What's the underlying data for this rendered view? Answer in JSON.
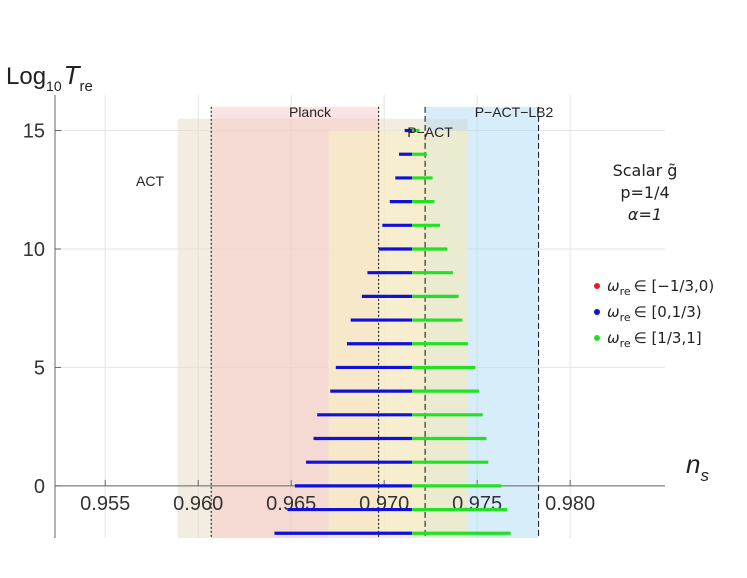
{
  "chart_data": {
    "type": "line",
    "x_axis": {
      "label_main": "n",
      "label_sub": "s",
      "range": [
        0.9523,
        0.9851
      ],
      "ticks": [
        0.955,
        0.96,
        0.965,
        0.97,
        0.975,
        0.98
      ],
      "tick_labels": [
        "0.955",
        "0.960",
        "0.965",
        "0.970",
        "0.975",
        "0.980"
      ]
    },
    "y_axis": {
      "label_prefix": "Log",
      "label_base": "10",
      "label_var": "T",
      "label_sub": "re",
      "range": [
        -2.2,
        16.5
      ],
      "ticks": [
        0,
        5,
        10,
        15
      ],
      "tick_labels": [
        "0",
        "5",
        "10",
        "15"
      ]
    },
    "regions": [
      {
        "name": "ACT",
        "label": "ACT",
        "x": [
          0.9589,
          0.9745
        ],
        "y": [
          -2.2,
          15.5
        ],
        "color": "#e8ddc8",
        "opacity": 0.55
      },
      {
        "name": "Planck",
        "label": "Planck",
        "x": [
          0.9607,
          0.9697
        ],
        "y": [
          -2.2,
          16.0
        ],
        "color": "#f7c7c7",
        "opacity": 0.5
      },
      {
        "name": "P-ACT-LB2",
        "label": "P−ACT−LB2",
        "x": [
          0.9722,
          0.9783
        ],
        "y": [
          -2.2,
          16.0
        ],
        "color": "#a9d8f5",
        "opacity": 0.45
      },
      {
        "name": "P-ACT",
        "label": "P−ACT",
        "x": [
          0.967,
          0.9745
        ],
        "y": [
          -2.2,
          15.0
        ],
        "color": "#f7efc4",
        "opacity": 0.65
      }
    ],
    "vlines": [
      {
        "x": 0.9607,
        "style": "dotted"
      },
      {
        "x": 0.9697,
        "style": "dotted"
      },
      {
        "x": 0.9722,
        "style": "dashed"
      },
      {
        "x": 0.9783,
        "style": "dashed"
      }
    ],
    "series": [
      {
        "name": "omega_re in [-1/3,0)",
        "color": "#ee1b1b",
        "segments": []
      },
      {
        "name": "omega_re in [0,1/3)",
        "color": "#1010d8",
        "segments": [
          {
            "y": 15.0,
            "x": [
              0.9711,
              0.9715
            ]
          },
          {
            "y": 14.0,
            "x": [
              0.9708,
              0.9715
            ]
          },
          {
            "y": 13.0,
            "x": [
              0.9706,
              0.9715
            ]
          },
          {
            "y": 12.0,
            "x": [
              0.9703,
              0.9715
            ]
          },
          {
            "y": 11.0,
            "x": [
              0.9699,
              0.9715
            ]
          },
          {
            "y": 10.0,
            "x": [
              0.9697,
              0.9715
            ]
          },
          {
            "y": 9.0,
            "x": [
              0.9691,
              0.9715
            ]
          },
          {
            "y": 8.0,
            "x": [
              0.9688,
              0.9715
            ]
          },
          {
            "y": 7.0,
            "x": [
              0.9682,
              0.9715
            ]
          },
          {
            "y": 6.0,
            "x": [
              0.968,
              0.9715
            ]
          },
          {
            "y": 5.0,
            "x": [
              0.9674,
              0.9715
            ]
          },
          {
            "y": 4.0,
            "x": [
              0.9671,
              0.9715
            ]
          },
          {
            "y": 3.0,
            "x": [
              0.9664,
              0.9715
            ]
          },
          {
            "y": 2.0,
            "x": [
              0.9662,
              0.9715
            ]
          },
          {
            "y": 1.0,
            "x": [
              0.9658,
              0.9715
            ]
          },
          {
            "y": 0.0,
            "x": [
              0.9652,
              0.9715
            ]
          },
          {
            "y": -1.0,
            "x": [
              0.9648,
              0.9715
            ]
          },
          {
            "y": -2.0,
            "x": [
              0.9641,
              0.9715
            ]
          }
        ]
      },
      {
        "name": "omega_re in [1/3,1]",
        "color": "#22e022",
        "segments": [
          {
            "y": 15.0,
            "x": [
              0.9715,
              0.9719
            ]
          },
          {
            "y": 14.0,
            "x": [
              0.9715,
              0.9723
            ]
          },
          {
            "y": 13.0,
            "x": [
              0.9715,
              0.9726
            ]
          },
          {
            "y": 12.0,
            "x": [
              0.9715,
              0.9727
            ]
          },
          {
            "y": 11.0,
            "x": [
              0.9715,
              0.973
            ]
          },
          {
            "y": 10.0,
            "x": [
              0.9715,
              0.9734
            ]
          },
          {
            "y": 9.0,
            "x": [
              0.9715,
              0.9737
            ]
          },
          {
            "y": 8.0,
            "x": [
              0.9715,
              0.974
            ]
          },
          {
            "y": 7.0,
            "x": [
              0.9715,
              0.9742
            ]
          },
          {
            "y": 6.0,
            "x": [
              0.9715,
              0.9745
            ]
          },
          {
            "y": 5.0,
            "x": [
              0.9715,
              0.9749
            ]
          },
          {
            "y": 4.0,
            "x": [
              0.9715,
              0.9751
            ]
          },
          {
            "y": 3.0,
            "x": [
              0.9715,
              0.9753
            ]
          },
          {
            "y": 2.0,
            "x": [
              0.9715,
              0.9755
            ]
          },
          {
            "y": 1.0,
            "x": [
              0.9715,
              0.9756
            ]
          },
          {
            "y": 0.0,
            "x": [
              0.9715,
              0.9763
            ]
          },
          {
            "y": -1.0,
            "x": [
              0.9715,
              0.9766
            ]
          },
          {
            "y": -2.0,
            "x": [
              0.9715,
              0.9768
            ]
          }
        ]
      }
    ],
    "legend": {
      "position": "right",
      "entries": [
        {
          "color": "#ee1b1b",
          "omega": "ω",
          "sub": "re",
          "range": "∈ [−1/3,0)"
        },
        {
          "color": "#1010d8",
          "omega": "ω",
          "sub": "re",
          "range": "∈ [0,1/3)"
        },
        {
          "color": "#22e022",
          "omega": "ω",
          "sub": "re",
          "range": "∈ [1/3,1]"
        }
      ]
    },
    "annotation": {
      "line1": "Scalar g̃",
      "line2": "p=1/4",
      "line3": "α=1"
    }
  }
}
